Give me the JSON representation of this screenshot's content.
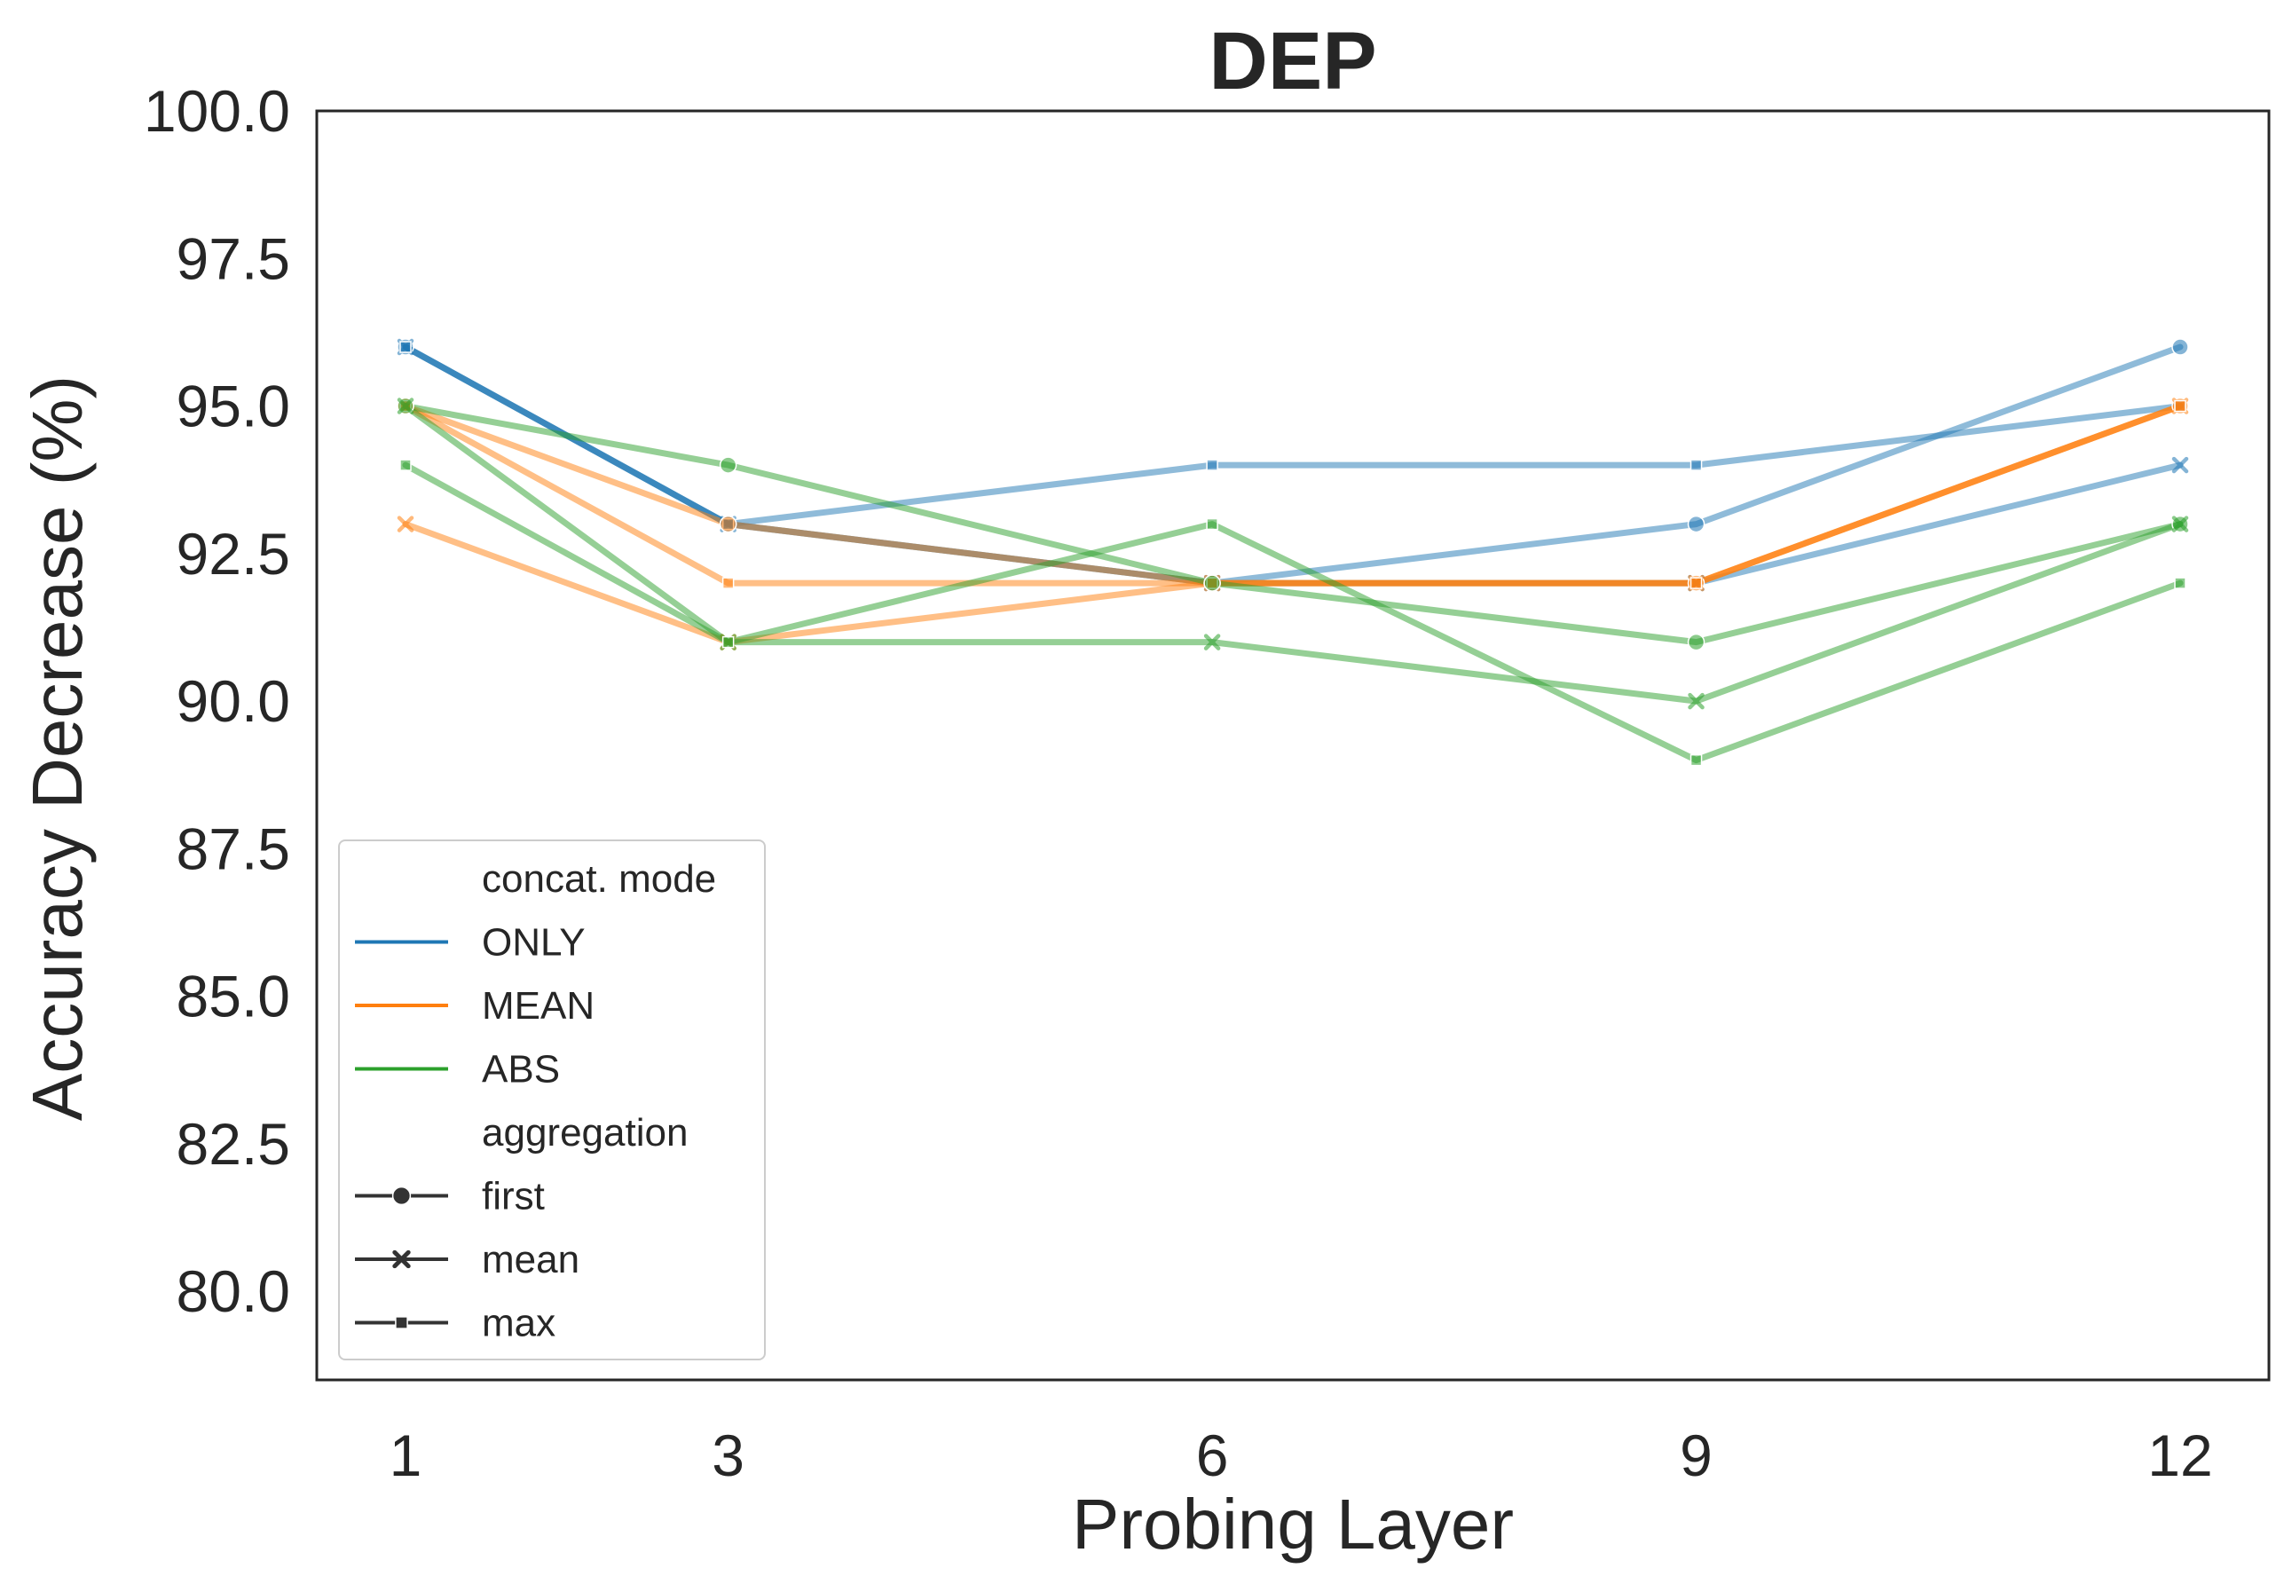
{
  "chart_data": {
    "type": "line",
    "title": "DEP",
    "xlabel": "Probing Layer",
    "ylabel": "Accuracy Decrease (%)",
    "x": [
      1,
      3,
      6,
      9,
      12
    ],
    "x_tick_labels": [
      "1",
      "3",
      "6",
      "9",
      "12"
    ],
    "x_range": [
      0.45,
      12.55
    ],
    "y_range": [
      78.5,
      100
    ],
    "y_ticks": [
      80.0,
      82.5,
      85.0,
      87.5,
      90.0,
      92.5,
      95.0,
      97.5,
      100.0
    ],
    "y_tick_labels": [
      "80.0",
      "82.5",
      "85.0",
      "87.5",
      "90.0",
      "92.5",
      "95.0",
      "97.5",
      "100.0"
    ],
    "grid": false,
    "legend_placement": "lower-left",
    "colors": {
      "ONLY": "#1f77b4",
      "MEAN": "#ff7f0e",
      "ABS": "#2ca02c"
    },
    "series": [
      {
        "concat_mode": "ONLY",
        "aggregation": "first",
        "values": [
          96,
          93,
          92,
          93,
          96
        ]
      },
      {
        "concat_mode": "ONLY",
        "aggregation": "mean",
        "values": [
          96,
          93,
          92,
          92,
          94
        ]
      },
      {
        "concat_mode": "ONLY",
        "aggregation": "max",
        "values": [
          96,
          93,
          94,
          94,
          95
        ]
      },
      {
        "concat_mode": "MEAN",
        "aggregation": "first",
        "values": [
          95,
          93,
          92,
          92,
          95
        ]
      },
      {
        "concat_mode": "MEAN",
        "aggregation": "mean",
        "values": [
          93,
          91,
          92,
          92,
          95
        ]
      },
      {
        "concat_mode": "MEAN",
        "aggregation": "max",
        "values": [
          95,
          92,
          92,
          92,
          95
        ]
      },
      {
        "concat_mode": "ABS",
        "aggregation": "first",
        "values": [
          95,
          94,
          92,
          91,
          93
        ]
      },
      {
        "concat_mode": "ABS",
        "aggregation": "mean",
        "values": [
          95,
          91,
          91,
          90,
          93
        ]
      },
      {
        "concat_mode": "ABS",
        "aggregation": "max",
        "values": [
          94,
          91,
          93,
          89,
          92
        ]
      }
    ],
    "legend": {
      "hue_title": "concat. mode",
      "hue_entries": [
        "ONLY",
        "MEAN",
        "ABS"
      ],
      "style_title": "aggregation",
      "style_entries": [
        "first",
        "mean",
        "max"
      ],
      "style_markers": [
        "circle",
        "x",
        "square"
      ]
    }
  }
}
